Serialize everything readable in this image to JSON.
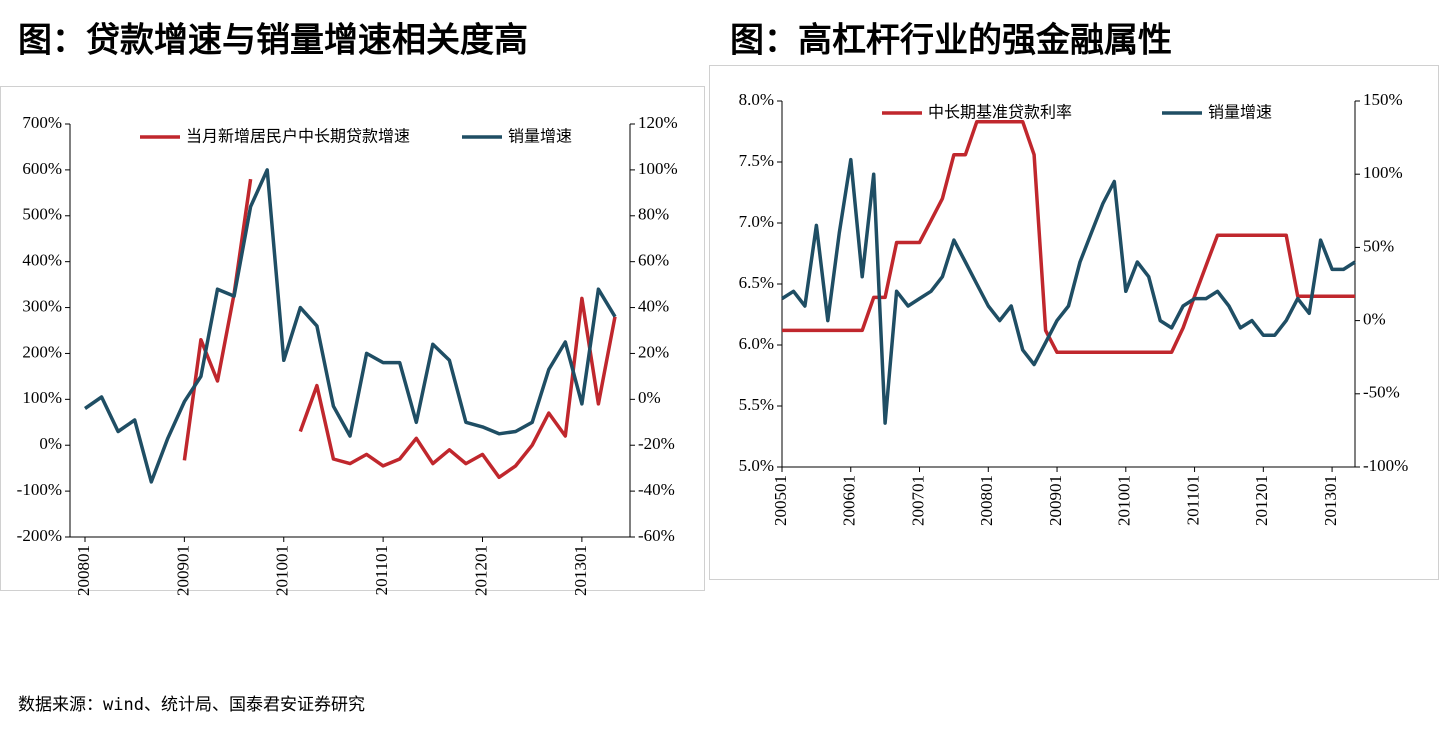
{
  "chart_data": [
    {
      "type": "line",
      "title": "图：贷款增速与销量增速相关度高",
      "categories": [
        "200801",
        null,
        null,
        null,
        null,
        null,
        "200901",
        null,
        null,
        null,
        null,
        null,
        "201001",
        null,
        null,
        null,
        null,
        null,
        "201101",
        null,
        null,
        null,
        null,
        null,
        "201201",
        null,
        null,
        null,
        null,
        null,
        "201301",
        null,
        null
      ],
      "series": [
        {
          "name": "当月新增居民户中长期贷款增速",
          "color": "#c0272d",
          "axis": "y",
          "values": [
            null,
            null,
            null,
            null,
            null,
            null,
            -33,
            230,
            140,
            330,
            580,
            null,
            null,
            30,
            130,
            -30,
            -40,
            -20,
            -45,
            -30,
            15,
            -40,
            -10,
            -40,
            -20,
            -70,
            -45,
            0,
            70,
            20,
            320,
            90,
            280
          ]
        },
        {
          "name": "销量增速",
          "color": "#1f4e64",
          "axis": "y2",
          "values": [
            -4,
            1,
            -14,
            -9,
            -36,
            -17,
            -1,
            10,
            48,
            45,
            84,
            100,
            17,
            40,
            32,
            -3,
            -16,
            20,
            16,
            16,
            -10,
            24,
            17,
            -10,
            -12,
            -15,
            -14,
            -10,
            13,
            25,
            -2,
            48,
            36
          ]
        }
      ],
      "ylim": [
        -200,
        700
      ],
      "yticks": [
        {
          "value": -200,
          "label": "-200%"
        },
        {
          "value": -100,
          "label": "-100%"
        },
        {
          "value": 0,
          "label": "0%"
        },
        {
          "value": 100,
          "label": "100%"
        },
        {
          "value": 200,
          "label": "200%"
        },
        {
          "value": 300,
          "label": "300%"
        },
        {
          "value": 400,
          "label": "400%"
        },
        {
          "value": 500,
          "label": "500%"
        },
        {
          "value": 600,
          "label": "600%"
        },
        {
          "value": 700,
          "label": "700%"
        }
      ],
      "y2lim": [
        -60,
        120
      ],
      "y2ticks": [
        {
          "value": -60,
          "label": "-60%"
        },
        {
          "value": -40,
          "label": "-40%"
        },
        {
          "value": -20,
          "label": "-20%"
        },
        {
          "value": 0,
          "label": "0%"
        },
        {
          "value": 20,
          "label": "20%"
        },
        {
          "value": 40,
          "label": "40%"
        },
        {
          "value": 60,
          "label": "60%"
        },
        {
          "value": 80,
          "label": "80%"
        },
        {
          "value": 100,
          "label": "100%"
        },
        {
          "value": 120,
          "label": "120%"
        }
      ],
      "grid": false
    },
    {
      "type": "line",
      "title": "图：高杠杆行业的强金融属性",
      "categories": [
        "200501",
        null,
        null,
        null,
        null,
        null,
        "200601",
        null,
        null,
        null,
        null,
        null,
        "200701",
        null,
        null,
        null,
        null,
        null,
        "200801",
        null,
        null,
        null,
        null,
        null,
        "200901",
        null,
        null,
        null,
        null,
        null,
        "201001",
        null,
        null,
        null,
        null,
        null,
        "201101",
        null,
        null,
        null,
        null,
        null,
        "201201",
        null,
        null,
        null,
        null,
        null,
        "201301",
        null,
        null
      ],
      "series": [
        {
          "name": "中长期基准贷款利率",
          "color": "#c0272d",
          "axis": "y",
          "values": [
            6.12,
            6.12,
            6.12,
            6.12,
            6.12,
            6.12,
            6.12,
            6.12,
            6.39,
            6.39,
            6.84,
            6.84,
            6.84,
            7.02,
            7.2,
            7.56,
            7.56,
            7.83,
            7.83,
            7.83,
            7.83,
            7.83,
            7.56,
            6.12,
            5.94,
            5.94,
            5.94,
            5.94,
            5.94,
            5.94,
            5.94,
            5.94,
            5.94,
            5.94,
            5.94,
            6.14,
            6.4,
            6.65,
            6.9,
            6.9,
            6.9,
            6.9,
            6.9,
            6.9,
            6.9,
            6.4,
            6.4,
            6.4,
            6.4,
            6.4,
            6.4
          ]
        },
        {
          "name": "销量增速",
          "color": "#1f4e64",
          "axis": "y2",
          "values": [
            15,
            20,
            10,
            65,
            0,
            60,
            110,
            30,
            100,
            -70,
            20,
            10,
            15,
            20,
            30,
            55,
            40,
            25,
            10,
            0,
            10,
            -20,
            -30,
            -15,
            0,
            10,
            40,
            60,
            80,
            95,
            20,
            40,
            30,
            0,
            -5,
            10,
            15,
            15,
            20,
            10,
            -5,
            0,
            -10,
            -10,
            0,
            15,
            5,
            55,
            35,
            35,
            40
          ]
        }
      ],
      "ylim": [
        5,
        8
      ],
      "yticks": [
        {
          "value": 5,
          "label": "5.0%"
        },
        {
          "value": 5.5,
          "label": "5.5%"
        },
        {
          "value": 6,
          "label": "6.0%"
        },
        {
          "value": 6.5,
          "label": "6.5%"
        },
        {
          "value": 7,
          "label": "7.0%"
        },
        {
          "value": 7.5,
          "label": "7.5%"
        },
        {
          "value": 8,
          "label": "8.0%"
        }
      ],
      "y2lim": [
        -100,
        150
      ],
      "y2ticks": [
        {
          "value": -100,
          "label": "-100%"
        },
        {
          "value": -50,
          "label": "-50%"
        },
        {
          "value": 0,
          "label": "0%"
        },
        {
          "value": 50,
          "label": "50%"
        },
        {
          "value": 100,
          "label": "100%"
        },
        {
          "value": 150,
          "label": "150%"
        }
      ],
      "grid": false
    }
  ],
  "source": "数据来源：wind、统计局、国泰君安证券研究"
}
